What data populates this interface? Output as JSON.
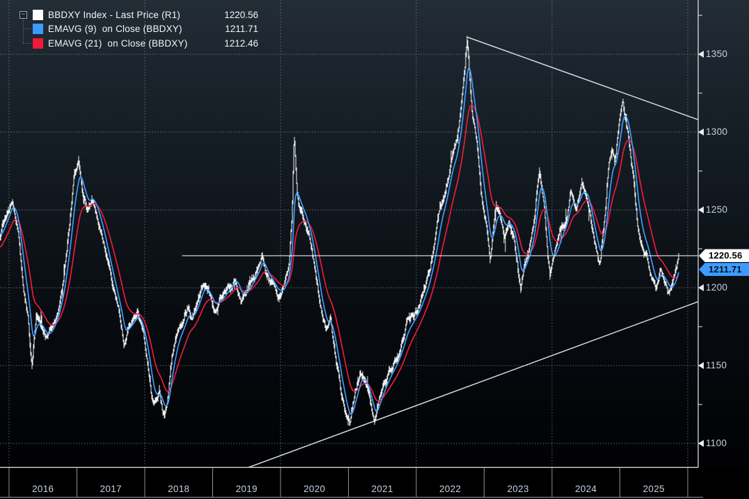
{
  "app": {
    "kind": "terminal-price-chart",
    "instrument": "BBDXY Index"
  },
  "legend": {
    "items": [
      {
        "label": "BBDXY Index - Last Price (R1)",
        "value": "1220.56",
        "color": "#ffffff"
      },
      {
        "label": "EMAVG (9)  on Close (BBDXY)",
        "value": "1211.71",
        "color": "#3d9bff"
      },
      {
        "label": "EMAVG (21)  on Close (BBDXY)",
        "value": "1212.46",
        "color": "#ef1a3c"
      }
    ],
    "collapse_icon_glyph": "−"
  },
  "chart_data": {
    "type": "line",
    "series": [
      {
        "name": "BBDXY Index - Last Price (R1)",
        "color": "#ffffff",
        "style": "price-bars",
        "last_value": 1220.56,
        "points": [
          [
            2015.87,
            1231
          ],
          [
            2015.93,
            1243
          ],
          [
            2016.0,
            1251
          ],
          [
            2016.05,
            1257
          ],
          [
            2016.13,
            1238
          ],
          [
            2016.2,
            1205
          ],
          [
            2016.28,
            1180
          ],
          [
            2016.34,
            1151
          ],
          [
            2016.4,
            1183
          ],
          [
            2016.47,
            1176
          ],
          [
            2016.55,
            1167
          ],
          [
            2016.63,
            1174
          ],
          [
            2016.72,
            1186
          ],
          [
            2016.8,
            1205
          ],
          [
            2016.88,
            1235
          ],
          [
            2016.96,
            1270
          ],
          [
            2017.03,
            1281
          ],
          [
            2017.1,
            1258
          ],
          [
            2017.16,
            1251
          ],
          [
            2017.22,
            1259
          ],
          [
            2017.3,
            1247
          ],
          [
            2017.38,
            1232
          ],
          [
            2017.47,
            1213
          ],
          [
            2017.55,
            1197
          ],
          [
            2017.63,
            1182
          ],
          [
            2017.7,
            1164
          ],
          [
            2017.76,
            1175
          ],
          [
            2017.83,
            1180
          ],
          [
            2017.9,
            1184
          ],
          [
            2017.97,
            1171
          ],
          [
            2018.05,
            1149
          ],
          [
            2018.1,
            1131
          ],
          [
            2018.14,
            1124
          ],
          [
            2018.22,
            1133
          ],
          [
            2018.28,
            1118
          ],
          [
            2018.33,
            1126
          ],
          [
            2018.4,
            1157
          ],
          [
            2018.48,
            1171
          ],
          [
            2018.56,
            1177
          ],
          [
            2018.64,
            1187
          ],
          [
            2018.7,
            1180
          ],
          [
            2018.78,
            1192
          ],
          [
            2018.86,
            1203
          ],
          [
            2018.94,
            1197
          ],
          [
            2019.02,
            1186
          ],
          [
            2019.1,
            1192
          ],
          [
            2019.18,
            1197
          ],
          [
            2019.26,
            1202
          ],
          [
            2019.34,
            1207
          ],
          [
            2019.42,
            1192
          ],
          [
            2019.5,
            1198
          ],
          [
            2019.58,
            1205
          ],
          [
            2019.66,
            1212
          ],
          [
            2019.73,
            1221
          ],
          [
            2019.8,
            1207
          ],
          [
            2019.88,
            1202
          ],
          [
            2019.96,
            1196
          ],
          [
            2020.04,
            1199
          ],
          [
            2020.12,
            1213
          ],
          [
            2020.17,
            1245
          ],
          [
            2020.2,
            1298
          ],
          [
            2020.24,
            1262
          ],
          [
            2020.29,
            1250
          ],
          [
            2020.37,
            1242
          ],
          [
            2020.45,
            1227
          ],
          [
            2020.53,
            1203
          ],
          [
            2020.61,
            1181
          ],
          [
            2020.68,
            1172
          ],
          [
            2020.74,
            1178
          ],
          [
            2020.82,
            1153
          ],
          [
            2020.9,
            1131
          ],
          [
            2020.97,
            1117
          ],
          [
            2021.02,
            1112
          ],
          [
            2021.1,
            1134
          ],
          [
            2021.18,
            1146
          ],
          [
            2021.26,
            1139
          ],
          [
            2021.32,
            1126
          ],
          [
            2021.39,
            1113
          ],
          [
            2021.46,
            1131
          ],
          [
            2021.54,
            1140
          ],
          [
            2021.62,
            1147
          ],
          [
            2021.7,
            1153
          ],
          [
            2021.78,
            1163
          ],
          [
            2021.86,
            1176
          ],
          [
            2021.94,
            1180
          ],
          [
            2022.02,
            1186
          ],
          [
            2022.1,
            1196
          ],
          [
            2022.18,
            1207
          ],
          [
            2022.27,
            1227
          ],
          [
            2022.35,
            1250
          ],
          [
            2022.43,
            1261
          ],
          [
            2022.51,
            1281
          ],
          [
            2022.59,
            1290
          ],
          [
            2022.66,
            1315
          ],
          [
            2022.72,
            1345
          ],
          [
            2022.75,
            1361
          ],
          [
            2022.78,
            1342
          ],
          [
            2022.83,
            1312
          ],
          [
            2022.89,
            1294
          ],
          [
            2022.96,
            1259
          ],
          [
            2023.04,
            1237
          ],
          [
            2023.09,
            1217
          ],
          [
            2023.14,
            1240
          ],
          [
            2023.18,
            1253
          ],
          [
            2023.24,
            1247
          ],
          [
            2023.3,
            1236
          ],
          [
            2023.37,
            1243
          ],
          [
            2023.44,
            1233
          ],
          [
            2023.5,
            1213
          ],
          [
            2023.54,
            1199
          ],
          [
            2023.6,
            1217
          ],
          [
            2023.68,
            1228
          ],
          [
            2023.74,
            1245
          ],
          [
            2023.79,
            1270
          ],
          [
            2023.82,
            1278
          ],
          [
            2023.88,
            1255
          ],
          [
            2023.93,
            1228
          ],
          [
            2023.97,
            1208
          ],
          [
            2024.04,
            1221
          ],
          [
            2024.12,
            1236
          ],
          [
            2024.2,
            1243
          ],
          [
            2024.28,
            1261
          ],
          [
            2024.36,
            1251
          ],
          [
            2024.44,
            1266
          ],
          [
            2024.52,
            1258
          ],
          [
            2024.6,
            1235
          ],
          [
            2024.66,
            1222
          ],
          [
            2024.71,
            1216
          ],
          [
            2024.78,
            1246
          ],
          [
            2024.84,
            1280
          ],
          [
            2024.89,
            1288
          ],
          [
            2024.93,
            1281
          ],
          [
            2024.99,
            1305
          ],
          [
            2025.04,
            1322
          ],
          [
            2025.09,
            1309
          ],
          [
            2025.13,
            1297
          ],
          [
            2025.2,
            1270
          ],
          [
            2025.27,
            1237
          ],
          [
            2025.33,
            1228
          ],
          [
            2025.4,
            1222
          ],
          [
            2025.47,
            1207
          ],
          [
            2025.53,
            1199
          ],
          [
            2025.6,
            1212
          ],
          [
            2025.66,
            1204
          ],
          [
            2025.73,
            1197
          ],
          [
            2025.79,
            1203
          ],
          [
            2025.84,
            1212
          ],
          [
            2025.875,
            1220.56
          ]
        ]
      },
      {
        "name": "EMAVG (9) on Close (BBDXY)",
        "color": "#3d9bff",
        "style": "line",
        "derived_from": "close",
        "period": 9,
        "last_value": 1211.71
      },
      {
        "name": "EMAVG (21) on Close (BBDXY)",
        "color": "#ef1a3c",
        "style": "line",
        "derived_from": "close",
        "period": 21,
        "last_value": 1212.46
      }
    ],
    "x_axis": {
      "year_labels": [
        "2016",
        "2017",
        "2018",
        "2019",
        "2020",
        "2021",
        "2022",
        "2023",
        "2024",
        "2025"
      ],
      "grid_years": [
        2016,
        2018,
        2020,
        2022,
        2024,
        2026
      ],
      "range": [
        2015.87,
        2026.22
      ]
    },
    "y_axis": {
      "side": "right",
      "tick_labels": [
        1350,
        1300,
        1250,
        1200,
        1150,
        1100
      ],
      "minor_tick_step": 25,
      "ylim": [
        1082,
        1385
      ]
    },
    "annotations": {
      "last_price_line": {
        "value": 1220.56,
        "start_year": 2018.55
      },
      "trendlines": [
        {
          "name": "descending-resistance",
          "from": [
            2022.75,
            1361
          ],
          "to": [
            2026.15,
            1308
          ]
        },
        {
          "name": "ascending-support",
          "from": [
            2019.43,
            1083
          ],
          "to": [
            2026.15,
            1191
          ]
        }
      ],
      "price_tags": [
        {
          "value": "1220.56",
          "bg": "#ffffff",
          "text": "#000000"
        },
        {
          "value": "1211.71",
          "bg": "#3d9bff",
          "text": "#001018"
        }
      ]
    },
    "colors": {
      "background_top": "#232d35",
      "background_bottom": "#000000",
      "grid": "#7d8791",
      "axis": "#e8ecef",
      "price": "#ffffff",
      "ema9": "#3d9bff",
      "ema21": "#ef1a3c",
      "tick_label": "#c7d1e0",
      "trendline": "#d7dde1"
    }
  }
}
